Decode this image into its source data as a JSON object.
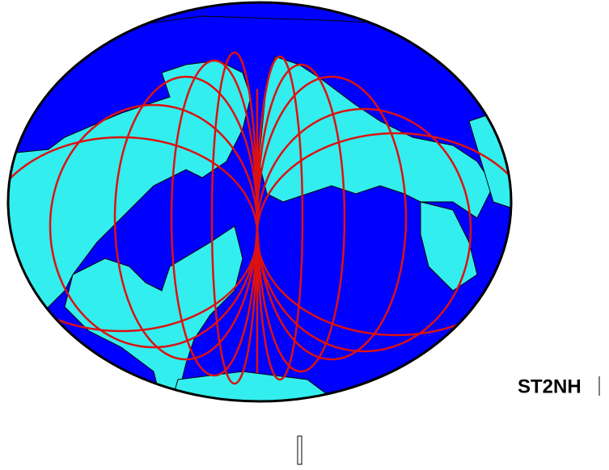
{
  "map": {
    "label": "ST2NH"
  }
}
